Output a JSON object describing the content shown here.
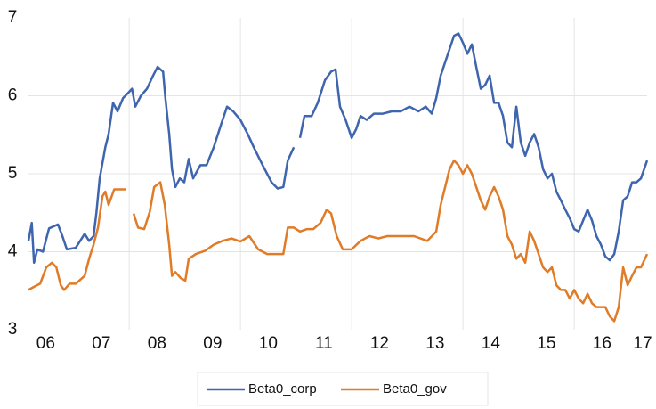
{
  "chart_data": {
    "type": "line",
    "xlim": [
      6.19,
      17.31
    ],
    "ylim": [
      3,
      7
    ],
    "yticks": [
      3,
      4,
      5,
      6,
      7
    ],
    "xticks": [
      {
        "value": 6.5,
        "label": "06"
      },
      {
        "value": 7.5,
        "label": "07"
      },
      {
        "value": 8.5,
        "label": "08"
      },
      {
        "value": 9.5,
        "label": "09"
      },
      {
        "value": 10.5,
        "label": "10"
      },
      {
        "value": 11.5,
        "label": "11"
      },
      {
        "value": 12.5,
        "label": "12"
      },
      {
        "value": 13.5,
        "label": "13"
      },
      {
        "value": 14.5,
        "label": "14"
      },
      {
        "value": 15.5,
        "label": "15"
      },
      {
        "value": 16.5,
        "label": "16"
      },
      {
        "value": 17.23,
        "label": "17"
      }
    ],
    "xgrid": [
      8,
      10,
      12,
      14,
      16
    ],
    "grid": true,
    "legend": "bottom",
    "series": [
      {
        "name": "Beta0_corp",
        "color": "#3e65ad",
        "x": [
          6.19,
          6.25,
          6.29,
          6.35,
          6.45,
          6.56,
          6.72,
          6.8,
          6.88,
          7.04,
          7.2,
          7.28,
          7.36,
          7.41,
          7.47,
          7.57,
          7.63,
          7.71,
          7.79,
          7.89,
          8.0,
          8.05,
          8.11,
          8.21,
          8.32,
          8.43,
          8.51,
          8.61,
          8.65,
          8.72,
          8.77,
          8.83,
          8.91,
          8.99,
          9.07,
          9.15,
          9.28,
          9.39,
          9.52,
          9.65,
          9.76,
          9.87,
          10.0,
          10.13,
          10.24,
          10.4,
          10.56,
          10.67,
          10.77,
          10.85,
          10.96,
          11.05,
          11.07,
          11.15,
          11.28,
          11.39,
          11.52,
          11.63,
          11.71,
          11.79,
          11.89,
          12.0,
          12.08,
          12.16,
          12.27,
          12.4,
          12.56,
          12.72,
          12.88,
          13.04,
          13.2,
          13.33,
          13.44,
          13.52,
          13.6,
          13.68,
          13.76,
          13.84,
          13.92,
          14.0,
          14.08,
          14.16,
          14.24,
          14.32,
          14.4,
          14.48,
          14.56,
          14.64,
          14.72,
          14.8,
          14.88,
          14.96,
          15.04,
          15.12,
          15.2,
          15.28,
          15.36,
          15.44,
          15.52,
          15.6,
          15.68,
          15.76,
          15.84,
          15.92,
          16.0,
          16.08,
          16.16,
          16.24,
          16.32,
          16.4,
          16.48,
          16.56,
          16.64,
          16.72,
          16.8,
          16.88,
          16.96,
          17.04,
          17.12,
          17.2,
          17.31
        ],
        "values": [
          4.14,
          4.37,
          3.86,
          4.03,
          4.0,
          4.3,
          4.35,
          4.2,
          4.03,
          4.05,
          4.23,
          4.14,
          4.2,
          4.5,
          4.94,
          5.34,
          5.51,
          5.91,
          5.8,
          5.97,
          6.05,
          6.09,
          5.86,
          6.0,
          6.09,
          6.26,
          6.37,
          6.31,
          5.97,
          5.51,
          5.06,
          4.83,
          4.94,
          4.89,
          5.19,
          4.94,
          5.11,
          5.11,
          5.34,
          5.63,
          5.86,
          5.8,
          5.69,
          5.51,
          5.34,
          5.11,
          4.89,
          4.81,
          4.83,
          5.17,
          5.34,
          null,
          5.46,
          5.74,
          5.74,
          5.91,
          6.2,
          6.31,
          6.34,
          5.86,
          5.69,
          5.46,
          5.57,
          5.74,
          5.69,
          5.77,
          5.77,
          5.8,
          5.8,
          5.86,
          5.8,
          5.86,
          5.77,
          5.97,
          6.26,
          6.43,
          6.6,
          6.77,
          6.8,
          6.68,
          6.54,
          6.66,
          6.37,
          6.09,
          6.14,
          6.26,
          5.91,
          5.91,
          5.74,
          5.4,
          5.34,
          5.86,
          5.4,
          5.23,
          5.4,
          5.51,
          5.34,
          5.06,
          4.94,
          5.0,
          4.77,
          4.66,
          4.54,
          4.43,
          4.29,
          4.26,
          4.4,
          4.54,
          4.4,
          4.2,
          4.09,
          3.94,
          3.89,
          3.97,
          4.26,
          4.66,
          4.71,
          4.89,
          4.89,
          4.94,
          5.17
        ]
      },
      {
        "name": "Beta0_gov",
        "color": "#e07b28",
        "x": [
          6.19,
          6.29,
          6.4,
          6.51,
          6.61,
          6.69,
          6.77,
          6.83,
          6.93,
          7.04,
          7.2,
          7.28,
          7.36,
          7.44,
          7.52,
          7.57,
          7.63,
          7.73,
          7.84,
          7.95,
          8.01,
          8.08,
          8.16,
          8.27,
          8.37,
          8.45,
          8.56,
          8.64,
          8.72,
          8.77,
          8.83,
          8.93,
          9.01,
          9.07,
          9.2,
          9.36,
          9.52,
          9.68,
          9.84,
          10.0,
          10.16,
          10.32,
          10.48,
          10.64,
          10.77,
          10.85,
          10.96,
          11.07,
          11.2,
          11.31,
          11.44,
          11.55,
          11.63,
          11.73,
          11.84,
          12.0,
          12.16,
          12.32,
          12.48,
          12.64,
          12.88,
          13.12,
          13.36,
          13.52,
          13.6,
          13.68,
          13.76,
          13.84,
          13.92,
          14.0,
          14.08,
          14.16,
          14.24,
          14.32,
          14.4,
          14.48,
          14.56,
          14.64,
          14.72,
          14.8,
          14.88,
          14.96,
          15.04,
          15.12,
          15.2,
          15.28,
          15.36,
          15.44,
          15.52,
          15.6,
          15.68,
          15.76,
          15.84,
          15.92,
          16.0,
          16.08,
          16.16,
          16.24,
          16.32,
          16.4,
          16.48,
          16.56,
          16.64,
          16.72,
          16.8,
          16.88,
          16.96,
          17.04,
          17.12,
          17.2,
          17.31
        ],
        "values": [
          3.51,
          3.55,
          3.59,
          3.8,
          3.86,
          3.8,
          3.57,
          3.51,
          3.59,
          3.59,
          3.69,
          3.91,
          4.09,
          4.31,
          4.71,
          4.77,
          4.6,
          4.8,
          4.8,
          4.8,
          null,
          4.49,
          4.31,
          4.29,
          4.51,
          4.83,
          4.89,
          4.6,
          4.09,
          3.69,
          3.74,
          3.66,
          3.63,
          3.91,
          3.97,
          4.01,
          4.09,
          4.14,
          4.17,
          4.13,
          4.2,
          4.03,
          3.97,
          3.97,
          3.97,
          4.31,
          4.31,
          4.26,
          4.29,
          4.29,
          4.37,
          4.54,
          4.49,
          4.2,
          4.03,
          4.03,
          4.14,
          4.2,
          4.17,
          4.2,
          4.2,
          4.2,
          4.14,
          4.26,
          4.6,
          4.83,
          5.06,
          5.17,
          5.11,
          5.0,
          5.11,
          5.0,
          4.83,
          4.66,
          4.54,
          4.71,
          4.83,
          4.71,
          4.54,
          4.2,
          4.09,
          3.91,
          3.97,
          3.86,
          4.26,
          4.14,
          3.97,
          3.8,
          3.74,
          3.8,
          3.57,
          3.51,
          3.51,
          3.4,
          3.51,
          3.4,
          3.34,
          3.46,
          3.34,
          3.29,
          3.29,
          3.29,
          3.17,
          3.11,
          3.29,
          3.8,
          3.57,
          3.69,
          3.8,
          3.8,
          3.97
        ]
      }
    ]
  }
}
